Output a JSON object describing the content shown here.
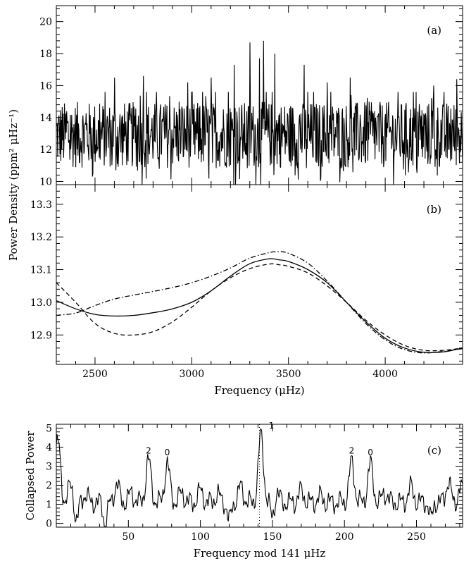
{
  "chart_data": [
    {
      "type": "line",
      "panel_tag": "(a)",
      "xlabel": "",
      "ylabel": "",
      "xlim": [
        2300,
        4400
      ],
      "ylim": [
        9.8,
        21
      ],
      "ytick_values": [
        10,
        12,
        14,
        16,
        18,
        20
      ],
      "ytick_labels": [
        "10",
        "12",
        "14",
        "16",
        "18",
        "20"
      ],
      "series": [
        {
          "style": "solid",
          "description_free": true,
          "noise_baseline": 12.7,
          "spikes": [
            {
              "x": 3300,
              "y": 18.7
            },
            {
              "x": 3350,
              "y": 17.7
            },
            {
              "x": 3370,
              "y": 18.8
            },
            {
              "x": 3430,
              "y": 18.0
            },
            {
              "x": 3220,
              "y": 17.3
            },
            {
              "x": 3580,
              "y": 17.3
            },
            {
              "x": 2750,
              "y": 16.6
            },
            {
              "x": 2600,
              "y": 16.5
            },
            {
              "x": 3100,
              "y": 16.5
            },
            {
              "x": 3820,
              "y": 16.5
            },
            {
              "x": 4370,
              "y": 16.4
            },
            {
              "x": 2980,
              "y": 16.2
            },
            {
              "x": 3700,
              "y": 16.2
            },
            {
              "x": 4250,
              "y": 16.0
            }
          ]
        }
      ]
    },
    {
      "type": "line",
      "panel_tag": "(b)",
      "xlabel": "Frequency (μHz)",
      "ylabel": "Power Density  (ppm² μHz⁻¹)",
      "xlim": [
        2300,
        4400
      ],
      "ylim": [
        12.81,
        13.36
      ],
      "xtick_values": [
        2500,
        3000,
        3500,
        4000
      ],
      "xtick_labels": [
        "2500",
        "3000",
        "3500",
        "4000"
      ],
      "ytick_values": [
        12.9,
        13.0,
        13.1,
        13.2,
        13.3
      ],
      "ytick_labels": [
        "12.9",
        "13.0",
        "13.1",
        "13.2",
        "13.3"
      ],
      "series": [
        {
          "style": "solid",
          "x": [
            2300,
            2400,
            2500,
            2600,
            2700,
            2800,
            2900,
            3000,
            3100,
            3200,
            3300,
            3400,
            3450,
            3500,
            3600,
            3700,
            3800,
            3900,
            4000,
            4100,
            4200,
            4300,
            4400
          ],
          "values": [
            13.005,
            12.98,
            12.963,
            12.958,
            12.96,
            12.968,
            12.98,
            13.0,
            13.035,
            13.08,
            13.118,
            13.133,
            13.13,
            13.125,
            13.1,
            13.06,
            13.0,
            12.94,
            12.89,
            12.86,
            12.847,
            12.848,
            12.86
          ]
        },
        {
          "style": "dashed",
          "x": [
            2300,
            2400,
            2500,
            2600,
            2700,
            2800,
            2900,
            3000,
            3100,
            3200,
            3300,
            3400,
            3450,
            3500,
            3600,
            3700,
            3800,
            3900,
            4000,
            4100,
            4200,
            4300,
            4400
          ],
          "values": [
            13.06,
            13.0,
            12.935,
            12.905,
            12.9,
            12.91,
            12.94,
            12.985,
            13.035,
            13.075,
            13.103,
            13.117,
            13.115,
            13.11,
            13.09,
            13.05,
            13.0,
            12.945,
            12.9,
            12.868,
            12.853,
            12.853,
            12.86
          ]
        },
        {
          "style": "dashdot",
          "x": [
            2300,
            2400,
            2500,
            2600,
            2700,
            2800,
            2900,
            3000,
            3100,
            3200,
            3300,
            3400,
            3450,
            3500,
            3600,
            3700,
            3800,
            3900,
            4000,
            4100,
            4200,
            4300,
            4400
          ],
          "values": [
            12.96,
            12.967,
            12.99,
            13.01,
            13.022,
            13.033,
            13.045,
            13.06,
            13.08,
            13.105,
            13.135,
            13.152,
            13.155,
            13.15,
            13.12,
            13.065,
            13.0,
            12.935,
            12.885,
            12.855,
            12.845,
            12.85,
            12.858
          ]
        }
      ]
    },
    {
      "type": "line",
      "panel_tag": "(c)",
      "xlabel": "Frequency mod 141 μHz",
      "ylabel": "Collapsed Power",
      "xlim": [
        0,
        282
      ],
      "ylim": [
        -0.2,
        5.2
      ],
      "xtick_values": [
        50,
        100,
        150,
        200,
        250
      ],
      "xtick_labels": [
        "50",
        "100",
        "150",
        "200",
        "250"
      ],
      "ytick_values": [
        0,
        1,
        2,
        3,
        4,
        5
      ],
      "ytick_labels": [
        "0",
        "1",
        "2",
        "3",
        "4",
        "5"
      ],
      "vline_x": 141,
      "vline_style": "dotted",
      "peak_labels": [
        {
          "x": 64,
          "y": 3.3,
          "text": "2"
        },
        {
          "x": 77,
          "y": 3.2,
          "text": "0"
        },
        {
          "x": 141.5,
          "y": 4.6,
          "text": "1"
        },
        {
          "x": 205,
          "y": 3.3,
          "text": "2"
        },
        {
          "x": 218,
          "y": 3.2,
          "text": "0"
        }
      ],
      "series": [
        {
          "style": "solid",
          "baseline": 1.1,
          "peaks": [
            {
              "x": 1,
              "y": 4.3
            },
            {
              "x": 10,
              "y": 2.0
            },
            {
              "x": 20,
              "y": 1.5
            },
            {
              "x": 42,
              "y": 2.0
            },
            {
              "x": 52,
              "y": 1.6
            },
            {
              "x": 64,
              "y": 3.3
            },
            {
              "x": 77,
              "y": 3.1
            },
            {
              "x": 87,
              "y": 1.6
            },
            {
              "x": 100,
              "y": 1.7
            },
            {
              "x": 112,
              "y": 1.5
            },
            {
              "x": 128,
              "y": 1.9
            },
            {
              "x": 142,
              "y": 4.6
            },
            {
              "x": 153,
              "y": 1.6
            },
            {
              "x": 170,
              "y": 1.7
            },
            {
              "x": 183,
              "y": 1.4
            },
            {
              "x": 205,
              "y": 3.2
            },
            {
              "x": 218,
              "y": 3.1
            },
            {
              "x": 228,
              "y": 1.6
            },
            {
              "x": 246,
              "y": 1.9
            },
            {
              "x": 260,
              "y": 1.4
            },
            {
              "x": 272,
              "y": 2.1
            },
            {
              "x": 281,
              "y": 1.8
            }
          ],
          "troughs": [
            {
              "x": 14,
              "y": 0.0
            },
            {
              "x": 34,
              "y": -0.1
            },
            {
              "x": 120,
              "y": 0.1
            },
            {
              "x": 150,
              "y": 0.2
            },
            {
              "x": 260,
              "y": -0.1
            }
          ]
        }
      ]
    }
  ]
}
